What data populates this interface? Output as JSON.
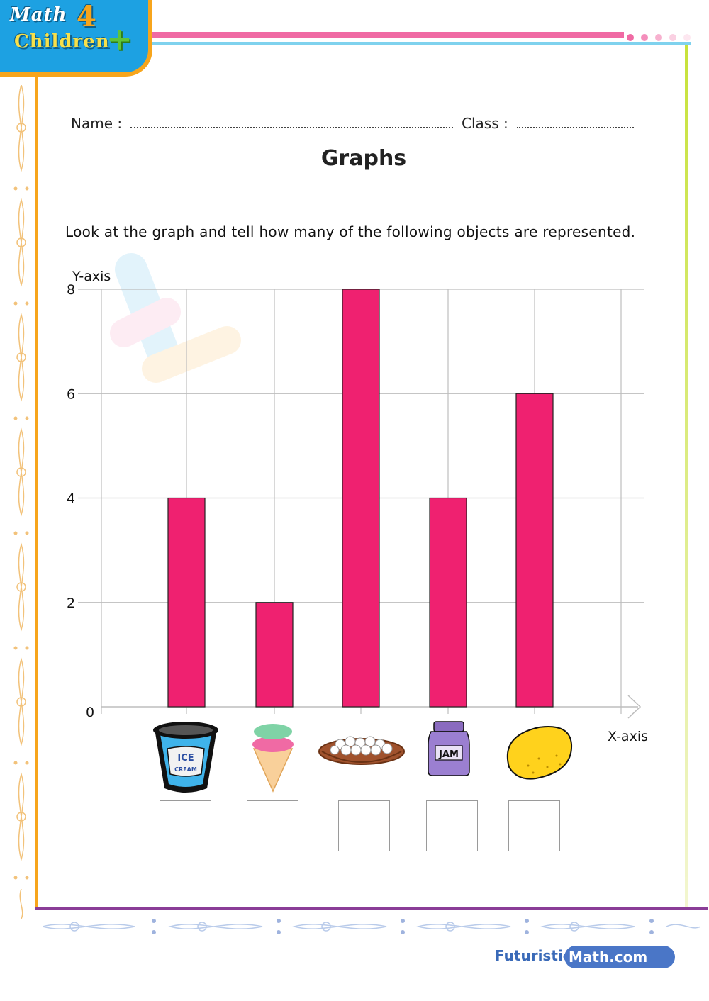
{
  "logo": {
    "line1": "Math",
    "line2": "Children",
    "number": "4",
    "plus": "+"
  },
  "header": {
    "name_label": "Name :",
    "class_label": "Class :",
    "title": "Graphs",
    "instruction": "Look at the graph and tell how many of the following objects are represented."
  },
  "colors": {
    "bar": "#ef2170",
    "grid": "#bdbdbd",
    "accent_blue": "#1da1e2",
    "accent_orange": "#f7a51c",
    "accent_pink": "#f06aa4"
  },
  "chart_data": {
    "type": "bar",
    "ylabel": "Y-axis",
    "xlabel": "X-axis",
    "ylim": [
      0,
      8
    ],
    "yticks": [
      0,
      2,
      4,
      6,
      8
    ],
    "grid": true,
    "categories": [
      "ice-cream-tub",
      "ice-cream-cone",
      "nest-of-eggs",
      "jam-jar",
      "lemon"
    ],
    "values": [
      4,
      2,
      8,
      4,
      6
    ],
    "category_icons": [
      "ice-cream-tub-icon",
      "ice-cream-cone-icon",
      "egg-nest-icon",
      "jam-jar-icon",
      "lemon-icon"
    ]
  },
  "icons": {
    "tub_text1": "ICE",
    "tub_text2": "CREAM",
    "jar_text": "JAM"
  },
  "footer": {
    "brand_part1": "Futuristic",
    "brand_part2": "Math.com"
  }
}
